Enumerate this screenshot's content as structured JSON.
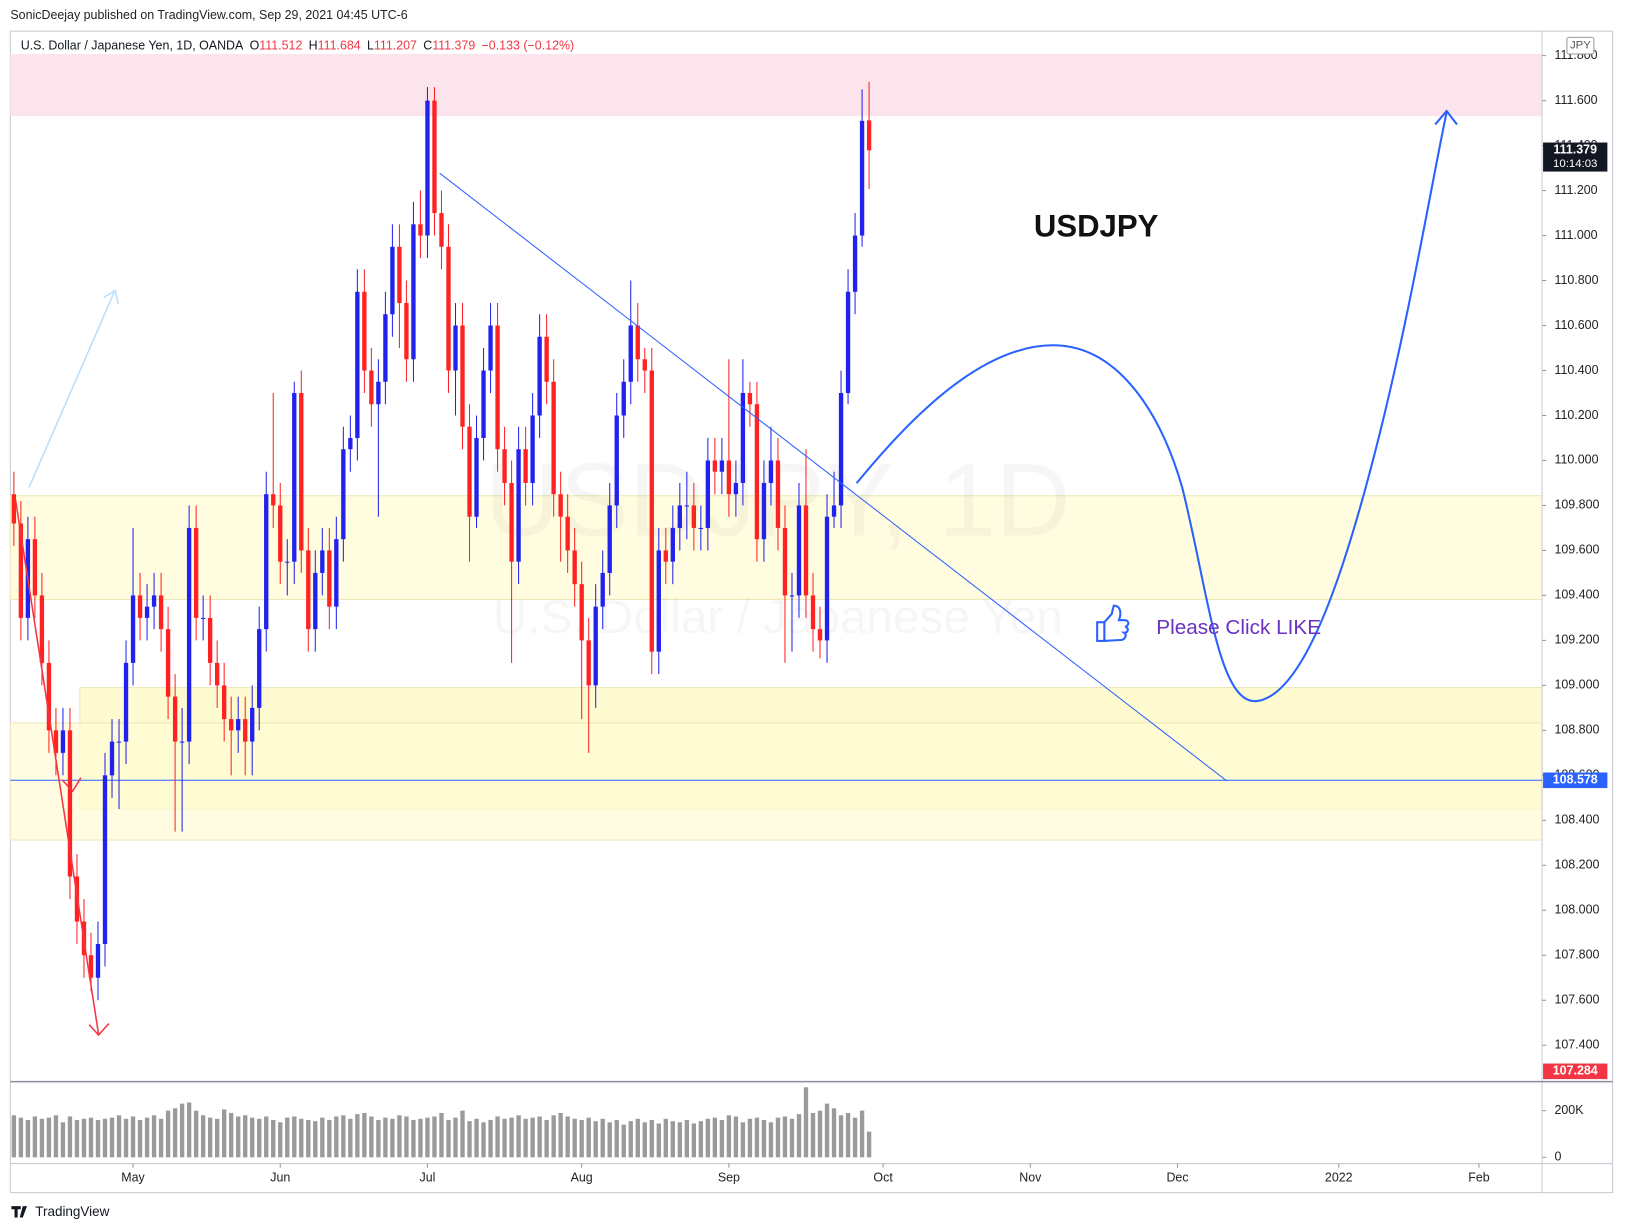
{
  "header": {
    "publisher": "SonicDeejay published on TradingView.com, Sep 29, 2021 04:45 UTC-6",
    "symbol": "U.S. Dollar / Japanese Yen, 1D, OANDA",
    "ohlc": [
      {
        "key": "O",
        "value": "111.512"
      },
      {
        "key": "H",
        "value": "111.684"
      },
      {
        "key": "L",
        "value": "111.207"
      },
      {
        "key": "C",
        "value": "111.379"
      }
    ],
    "change": "−0.133 (−0.12%)"
  },
  "currency": "JPY",
  "watermark": {
    "symbol": "USDJPY, 1D",
    "name": "U.S. Dollar / Japanese Yen"
  },
  "annotations": {
    "title": "USDJPY",
    "like": "Please Click LIKE"
  },
  "footer": "TradingView",
  "chart_data": {
    "type": "candlestick",
    "up_color": "#2222ee",
    "down_color": "#ff2222",
    "volume_color": "#9a9a9a",
    "xlim": [
      -0.5,
      218
    ],
    "xticks": [
      {
        "value": 17,
        "label": "May"
      },
      {
        "value": 38,
        "label": "Jun"
      },
      {
        "value": 59,
        "label": "Jul"
      },
      {
        "value": 81,
        "label": "Aug"
      },
      {
        "value": 102,
        "label": "Sep"
      },
      {
        "value": 124,
        "label": "Oct"
      },
      {
        "value": 145,
        "label": "Nov"
      },
      {
        "value": 166,
        "label": "Dec"
      },
      {
        "value": 189,
        "label": "2022"
      },
      {
        "value": 209,
        "label": "Feb"
      }
    ],
    "ylim": [
      107.252,
      111.895
    ],
    "yticks": [
      {
        "value": 107.4,
        "label": "107.400"
      },
      {
        "value": 107.6,
        "label": "107.600"
      },
      {
        "value": 107.8,
        "label": "107.800"
      },
      {
        "value": 108,
        "label": "108.000"
      },
      {
        "value": 108.2,
        "label": "108.200"
      },
      {
        "value": 108.4,
        "label": "108.400"
      },
      {
        "value": 108.6,
        "label": "108.600"
      },
      {
        "value": 108.8,
        "label": "108.800"
      },
      {
        "value": 109,
        "label": "109.000"
      },
      {
        "value": 109.2,
        "label": "109.200"
      },
      {
        "value": 109.4,
        "label": "109.400"
      },
      {
        "value": 109.6,
        "label": "109.600"
      },
      {
        "value": 109.8,
        "label": "109.800"
      },
      {
        "value": 110,
        "label": "110.000"
      },
      {
        "value": 110.2,
        "label": "110.200"
      },
      {
        "value": 110.4,
        "label": "110.400"
      },
      {
        "value": 110.6,
        "label": "110.600"
      },
      {
        "value": 110.8,
        "label": "110.800"
      },
      {
        "value": 111,
        "label": "111.000"
      },
      {
        "value": 111.2,
        "label": "111.200"
      },
      {
        "value": 111.4,
        "label": "111.400"
      },
      {
        "value": 111.6,
        "label": "111.600"
      },
      {
        "value": 111.8,
        "label": "111.800"
      }
    ],
    "price_labels": [
      {
        "value": 111.379,
        "label": "111.379",
        "sub": "10:14:03",
        "color": "#131722"
      },
      {
        "value": 108.578,
        "label": "108.578",
        "color": "#2962ff"
      },
      {
        "value": 107.284,
        "label": "107.284",
        "color": "#f23645"
      }
    ],
    "vlim": [
      0,
      333
    ],
    "vticks": [
      {
        "value": 0,
        "label": "0"
      },
      {
        "value": 200,
        "label": "200K"
      }
    ],
    "open": [
      109.85,
      109.72,
      109.3,
      109.65,
      109.4,
      109.1,
      108.8,
      108.7,
      108.8,
      108.15,
      107.95,
      107.8,
      107.7,
      107.85,
      108.6,
      108.75,
      108.75,
      109.1,
      109.4,
      109.3,
      109.35,
      109.4,
      109.25,
      108.95,
      108.75,
      108.75,
      109.7,
      109.3,
      109.3,
      109.1,
      109.0,
      108.85,
      108.8,
      108.85,
      108.75,
      108.9,
      109.25,
      109.85,
      109.8,
      109.55,
      109.55,
      110.3,
      109.6,
      109.25,
      109.5,
      109.6,
      109.35,
      109.65,
      110.05,
      110.1,
      110.75,
      110.4,
      110.25,
      110.35,
      110.65,
      110.95,
      110.7,
      110.45,
      111.05,
      111.0,
      111.6,
      111.1,
      110.95,
      110.4,
      110.6,
      110.15,
      109.75,
      110.1,
      110.4,
      110.6,
      110.05,
      109.9,
      109.55,
      110.05,
      109.9,
      110.2,
      110.55,
      110.35,
      109.85,
      109.75,
      109.6,
      109.45,
      109.2,
      109.0,
      109.35,
      109.5,
      109.8,
      110.2,
      110.35,
      110.6,
      110.45,
      110.4,
      109.15,
      109.6,
      109.55,
      109.7,
      109.8,
      109.8,
      109.7,
      109.7,
      110.0,
      109.95,
      110.0,
      109.85,
      109.9,
      110.3,
      110.25,
      109.65,
      109.9,
      110.0,
      109.7,
      109.4,
      109.4,
      109.8,
      109.4,
      109.25,
      109.2,
      109.75,
      109.8,
      110.3,
      110.75,
      111.0,
      111.512
    ],
    "high": [
      109.95,
      109.82,
      109.75,
      109.75,
      109.5,
      109.2,
      108.9,
      108.9,
      108.9,
      108.25,
      108.05,
      107.9,
      107.95,
      108.7,
      108.85,
      108.85,
      109.2,
      109.7,
      109.5,
      109.45,
      109.5,
      109.5,
      109.35,
      109.05,
      108.9,
      109.8,
      109.8,
      109.4,
      109.4,
      109.2,
      109.1,
      108.95,
      108.95,
      108.95,
      109.0,
      109.35,
      109.95,
      110.3,
      109.9,
      109.65,
      110.35,
      110.4,
      109.7,
      109.6,
      109.7,
      109.7,
      109.75,
      110.15,
      110.2,
      110.85,
      110.85,
      110.5,
      110.45,
      110.75,
      111.05,
      111.05,
      110.8,
      111.15,
      111.2,
      111.66,
      111.66,
      111.2,
      111.05,
      110.7,
      110.7,
      110.25,
      110.2,
      110.5,
      110.7,
      110.7,
      110.15,
      110.0,
      110.15,
      110.15,
      110.3,
      110.65,
      110.65,
      110.45,
      109.95,
      109.85,
      109.7,
      109.55,
      109.3,
      109.45,
      109.6,
      109.9,
      110.3,
      110.45,
      110.8,
      110.7,
      110.5,
      110.5,
      109.7,
      109.7,
      109.8,
      109.9,
      109.95,
      109.9,
      109.8,
      110.1,
      110.1,
      110.1,
      110.45,
      110.0,
      110.45,
      110.35,
      110.35,
      110.0,
      110.15,
      110.1,
      109.8,
      109.5,
      109.9,
      110.05,
      109.5,
      109.35,
      109.85,
      109.95,
      110.4,
      110.85,
      111.1,
      111.65,
      111.684
    ],
    "low": [
      109.62,
      109.2,
      109.2,
      109.3,
      109.0,
      108.7,
      108.6,
      108.6,
      108.05,
      107.85,
      107.7,
      107.64,
      107.6,
      107.75,
      108.5,
      108.45,
      108.65,
      109.0,
      109.2,
      109.2,
      109.25,
      109.15,
      108.85,
      108.35,
      108.35,
      108.65,
      109.2,
      109.2,
      109.0,
      108.9,
      108.75,
      108.6,
      108.7,
      108.6,
      108.6,
      108.8,
      109.15,
      109.7,
      109.45,
      109.4,
      109.45,
      109.5,
      109.15,
      109.15,
      109.4,
      109.25,
      109.25,
      109.55,
      109.95,
      110.0,
      110.3,
      110.15,
      109.75,
      110.25,
      110.55,
      110.5,
      110.35,
      110.35,
      110.9,
      110.9,
      111.0,
      110.85,
      110.3,
      110.2,
      110.05,
      109.55,
      109.7,
      110.0,
      110.3,
      109.95,
      109.8,
      109.1,
      109.45,
      109.8,
      109.8,
      110.1,
      110.25,
      109.75,
      109.55,
      109.5,
      109.35,
      108.85,
      108.7,
      108.9,
      109.25,
      109.4,
      109.7,
      110.1,
      110.25,
      110.35,
      110.3,
      109.05,
      109.05,
      109.45,
      109.45,
      109.6,
      109.65,
      109.6,
      109.6,
      109.6,
      109.85,
      109.85,
      109.75,
      109.75,
      109.8,
      110.15,
      109.55,
      109.55,
      109.8,
      109.6,
      109.1,
      109.15,
      109.3,
      109.3,
      109.15,
      109.12,
      109.1,
      109.7,
      109.7,
      110.25,
      110.65,
      110.95,
      111.207
    ],
    "close": [
      109.72,
      109.3,
      109.65,
      109.4,
      109.1,
      108.8,
      108.7,
      108.8,
      108.15,
      107.95,
      107.8,
      107.7,
      107.85,
      108.6,
      108.75,
      108.75,
      109.1,
      109.4,
      109.3,
      109.35,
      109.4,
      109.25,
      108.95,
      108.75,
      108.75,
      109.7,
      109.3,
      109.3,
      109.1,
      109.0,
      108.85,
      108.8,
      108.85,
      108.75,
      108.9,
      109.25,
      109.85,
      109.8,
      109.55,
      109.55,
      110.3,
      109.6,
      109.25,
      109.5,
      109.6,
      109.35,
      109.65,
      110.05,
      110.1,
      110.75,
      110.4,
      110.25,
      110.35,
      110.65,
      110.95,
      110.7,
      110.45,
      111.05,
      111.0,
      111.6,
      111.1,
      110.95,
      110.4,
      110.6,
      110.15,
      109.75,
      110.1,
      110.4,
      110.6,
      110.05,
      109.9,
      109.55,
      110.05,
      109.9,
      110.2,
      110.55,
      110.35,
      109.85,
      109.75,
      109.6,
      109.45,
      109.2,
      109.0,
      109.35,
      109.5,
      109.8,
      110.2,
      110.35,
      110.6,
      110.45,
      110.4,
      109.15,
      109.6,
      109.55,
      109.7,
      109.8,
      109.8,
      109.7,
      109.7,
      110.0,
      109.95,
      110.0,
      109.85,
      109.9,
      110.3,
      110.25,
      109.65,
      109.9,
      110.0,
      109.7,
      109.4,
      109.4,
      109.8,
      109.4,
      109.25,
      109.2,
      109.75,
      109.8,
      110.3,
      110.75,
      111.0,
      111.51,
      111.379
    ],
    "volume": [
      180,
      170,
      160,
      175,
      165,
      170,
      180,
      150,
      175,
      160,
      165,
      170,
      160,
      165,
      170,
      180,
      165,
      175,
      160,
      170,
      180,
      165,
      200,
      210,
      230,
      235,
      200,
      180,
      170,
      165,
      205,
      190,
      175,
      180,
      170,
      165,
      175,
      160,
      150,
      170,
      175,
      165,
      160,
      155,
      170,
      160,
      175,
      180,
      165,
      185,
      190,
      175,
      160,
      170,
      165,
      180,
      175,
      160,
      165,
      170,
      175,
      190,
      160,
      170,
      200,
      155,
      165,
      150,
      160,
      175,
      165,
      170,
      180,
      165,
      170,
      175,
      160,
      180,
      190,
      175,
      165,
      160,
      170,
      155,
      165,
      150,
      160,
      140,
      155,
      165,
      150,
      160,
      145,
      165,
      155,
      150,
      160,
      145,
      155,
      165,
      170,
      160,
      180,
      175,
      150,
      165,
      170,
      160,
      150,
      170,
      175,
      165,
      185,
      300,
      190,
      200,
      230,
      210,
      180,
      190,
      170,
      200,
      110
    ]
  }
}
